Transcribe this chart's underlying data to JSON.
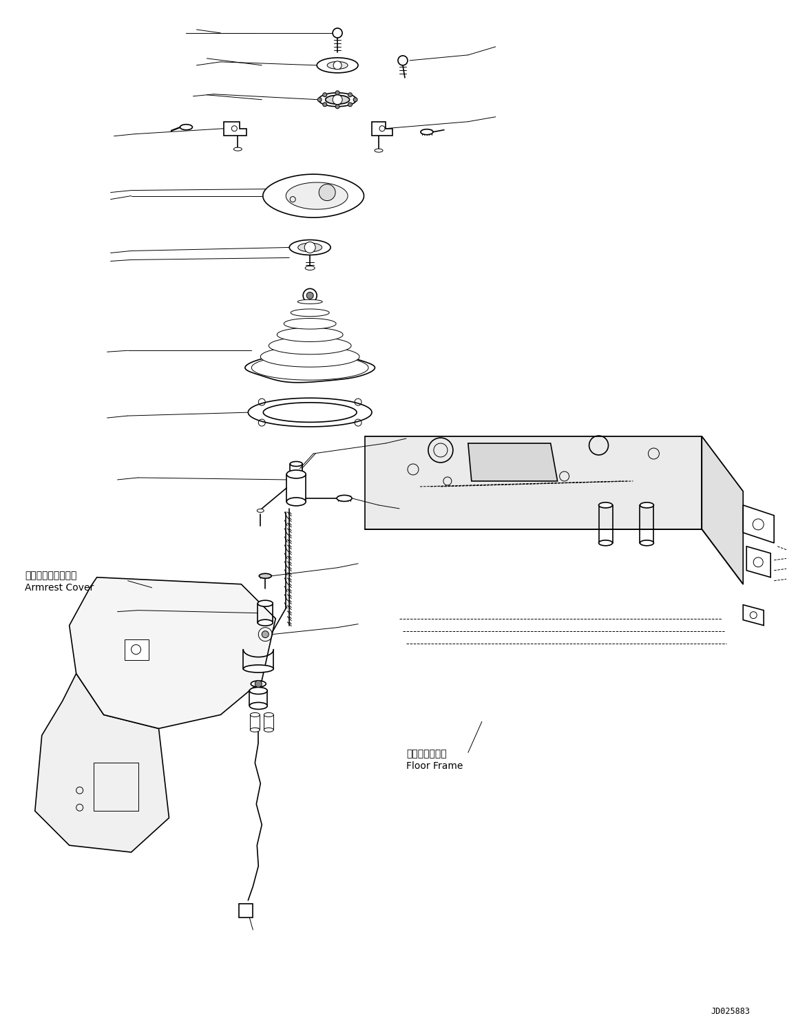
{
  "background_color": "#ffffff",
  "line_color": "#000000",
  "label_armrest_jp": "アームレストカバー",
  "label_armrest_en": "Armrest Cover",
  "label_floor_jp": "フロアフレーム",
  "label_floor_en": "Floor Frame",
  "code": "JD025883",
  "fig_width": 11.43,
  "fig_height": 14.79,
  "dpi": 100
}
